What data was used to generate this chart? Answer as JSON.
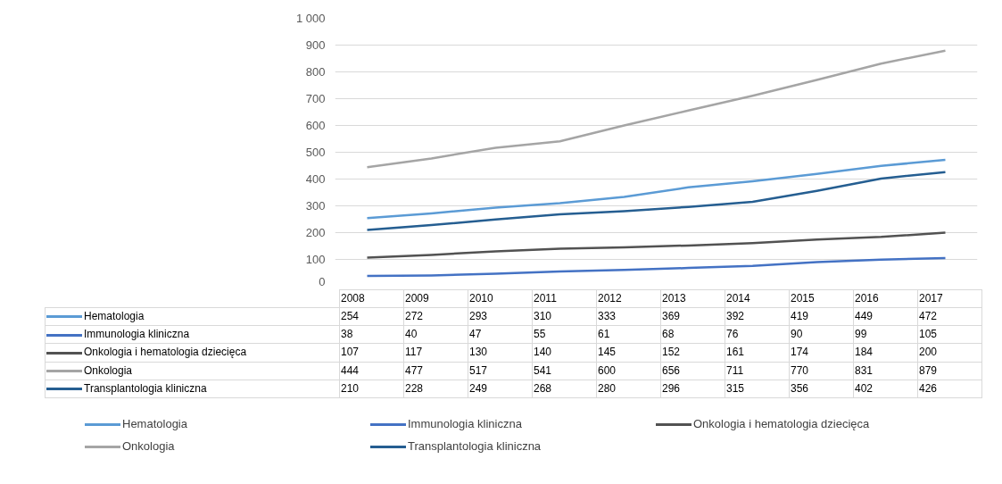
{
  "chart_data": {
    "type": "line",
    "categories": [
      "2008",
      "2009",
      "2010",
      "2011",
      "2012",
      "2013",
      "2014",
      "2015",
      "2016",
      "2017"
    ],
    "series": [
      {
        "name": "Hematologia",
        "color": "#5b9bd5",
        "values": [
          254,
          272,
          293,
          310,
          333,
          369,
          392,
          419,
          449,
          472
        ]
      },
      {
        "name": "Immunologia kliniczna",
        "color": "#4472c4",
        "values": [
          38,
          40,
          47,
          55,
          61,
          68,
          76,
          90,
          99,
          105
        ]
      },
      {
        "name": "Onkologia i hematologia dziecięca",
        "color": "#525252",
        "values": [
          107,
          117,
          130,
          140,
          145,
          152,
          161,
          174,
          184,
          200
        ]
      },
      {
        "name": "Onkologia",
        "color": "#a5a5a5",
        "values": [
          444,
          477,
          517,
          541,
          600,
          656,
          711,
          770,
          831,
          879
        ]
      },
      {
        "name": "Transplantologia kliniczna",
        "color": "#255e91",
        "values": [
          210,
          228,
          249,
          268,
          280,
          296,
          315,
          356,
          402,
          426
        ]
      }
    ],
    "ylim": [
      0,
      1000
    ],
    "yticks": [
      0,
      100,
      200,
      300,
      400,
      500,
      600,
      700,
      800,
      900,
      {
        "value": 1000,
        "label": "1 000"
      }
    ],
    "grid": "y",
    "legend": "bottom",
    "data_labels": true,
    "marker": "none",
    "line_style": "solid"
  }
}
